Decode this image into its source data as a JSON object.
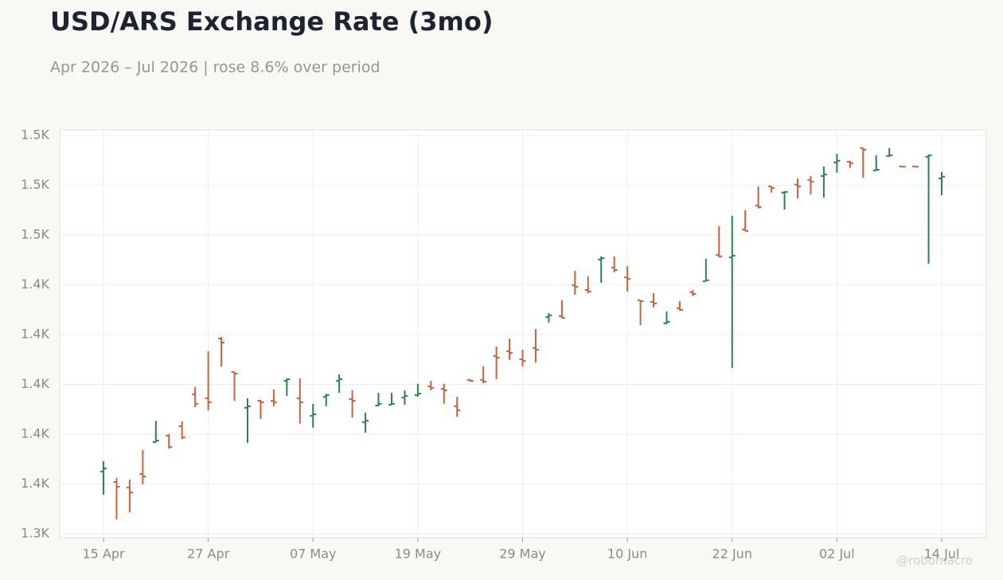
{
  "chart_data": {
    "type": "ohlc",
    "title": "USD/ARS Exchange Rate (3mo)",
    "subtitle": "Apr 2026 – Jul 2026 | rose 8.6% over period",
    "watermark": "@robomacro",
    "categories": [
      "15 Apr",
      null,
      null,
      null,
      null,
      null,
      null,
      null,
      "27 Apr",
      null,
      null,
      null,
      null,
      null,
      null,
      null,
      "07 May",
      null,
      null,
      null,
      null,
      null,
      null,
      null,
      "19 May",
      null,
      null,
      null,
      null,
      null,
      null,
      null,
      "29 May",
      null,
      null,
      null,
      null,
      null,
      null,
      null,
      "10 Jun",
      null,
      null,
      null,
      null,
      null,
      null,
      null,
      "22 Jun",
      null,
      null,
      null,
      null,
      null,
      null,
      null,
      "02 Jul",
      null,
      null,
      null,
      null,
      null,
      null,
      null,
      "14 Jul"
    ],
    "open": [
      1365.0,
      1360.8,
      1358.6,
      1364.0,
      1376.8,
      1379.4,
      1383.2,
      1396.0,
      1394.4,
      1418.4,
      1405.0,
      1390.6,
      1393.4,
      1393.4,
      1401.4,
      1394.4,
      1387.4,
      1395.0,
      1401.4,
      1394.1,
      1384.8,
      1391.5,
      1391.8,
      1394.7,
      1395.7,
      1399.2,
      1398.2,
      1391.2,
      1401.8,
      1401.8,
      1411.4,
      1413.3,
      1410.1,
      1414.6,
      1427.0,
      1427.4,
      1439.8,
      1437.9,
      1450.1,
      1446.9,
      1443.0,
      1433.8,
      1433.1,
      1424.5,
      1430.6,
      1437.0,
      1441.4,
      1452.0,
      1451.0,
      1462.2,
      1471.8,
      1479.5,
      1477.0,
      1480.2,
      1482.1,
      1483.7,
      1489.1,
      1489.4,
      1494.9,
      1485.9,
      1491.7,
      1487.5,
      1487.5,
      1491.4,
      1482.7
    ],
    "high": [
      1369.1,
      1362.4,
      1361.8,
      1373.6,
      1385.4,
      1380.0,
      1385.1,
      1398.9,
      1413.3,
      1419.0,
      1405.0,
      1394.4,
      1393.8,
      1397.9,
      1402.4,
      1402.4,
      1392.2,
      1396.3,
      1404.0,
      1397.6,
      1388.6,
      1396.6,
      1396.6,
      1397.6,
      1400.2,
      1401.4,
      1400.2,
      1395.0,
      1402.1,
      1407.2,
      1415.2,
      1418.4,
      1413.9,
      1422.2,
      1428.6,
      1433.8,
      1445.6,
      1443.4,
      1451.4,
      1451.4,
      1447.5,
      1433.8,
      1436.6,
      1429.3,
      1433.4,
      1437.9,
      1450.4,
      1463.5,
      1467.7,
      1469.9,
      1479.5,
      1479.5,
      1477.6,
      1482.7,
      1483.7,
      1487.5,
      1492.6,
      1489.8,
      1494.9,
      1492.0,
      1494.9,
      1487.5,
      1487.5,
      1492.3,
      1485.3
    ],
    "low": [
      1355.7,
      1345.8,
      1348.6,
      1359.8,
      1376.8,
      1374.2,
      1378.1,
      1390.9,
      1389.6,
      1407.2,
      1393.4,
      1376.5,
      1386.1,
      1391.2,
      1395.4,
      1384.2,
      1382.6,
      1391.2,
      1396.6,
      1386.7,
      1380.6,
      1391.2,
      1391.8,
      1391.8,
      1395.0,
      1397.6,
      1392.2,
      1387.0,
      1401.1,
      1400.5,
      1402.1,
      1409.8,
      1407.2,
      1408.8,
      1424.8,
      1426.7,
      1436.0,
      1436.6,
      1440.8,
      1445.0,
      1437.3,
      1423.8,
      1430.9,
      1424.2,
      1429.6,
      1435.4,
      1441.4,
      1451.0,
      1406.6,
      1461.6,
      1470.6,
      1477.0,
      1470.2,
      1474.7,
      1476.3,
      1475.0,
      1485.0,
      1486.9,
      1483.0,
      1485.9,
      1491.4,
      1487.4,
      1487.4,
      1448.5,
      1476.0
    ],
    "close": [
      1366.2,
      1358.9,
      1356.6,
      1363.0,
      1377.4,
      1374.9,
      1378.7,
      1392.2,
      1392.8,
      1416.8,
      1404.3,
      1391.2,
      1392.8,
      1392.8,
      1402.1,
      1392.8,
      1388.0,
      1395.7,
      1402.1,
      1393.4,
      1385.4,
      1392.2,
      1392.2,
      1395.4,
      1396.3,
      1398.6,
      1397.6,
      1389.6,
      1401.4,
      1401.1,
      1410.7,
      1412.6,
      1409.4,
      1413.9,
      1427.7,
      1426.7,
      1439.2,
      1437.3,
      1450.7,
      1445.9,
      1442.4,
      1433.4,
      1432.5,
      1425.1,
      1429.9,
      1436.3,
      1441.8,
      1451.4,
      1451.7,
      1461.6,
      1471.2,
      1478.9,
      1477.3,
      1479.5,
      1481.4,
      1484.3,
      1489.8,
      1488.8,
      1494.2,
      1486.2,
      1492.0,
      1487.4,
      1487.4,
      1492.0,
      1483.4
    ],
    "up_color": "#2e8050",
    "down_color": "#c4633f",
    "ylim": [
      1338.4,
      1502.2
    ],
    "yticks": [
      {
        "value": 1340,
        "label": "1.3K"
      },
      {
        "value": 1360,
        "label": "1.4K"
      },
      {
        "value": 1380,
        "label": "1.4K"
      },
      {
        "value": 1400,
        "label": "1.4K"
      },
      {
        "value": 1420,
        "label": "1.4K"
      },
      {
        "value": 1440,
        "label": "1.4K"
      },
      {
        "value": 1460,
        "label": "1.5K"
      },
      {
        "value": 1480,
        "label": "1.5K"
      },
      {
        "value": 1500,
        "label": "1.5K"
      }
    ],
    "grid": true
  }
}
